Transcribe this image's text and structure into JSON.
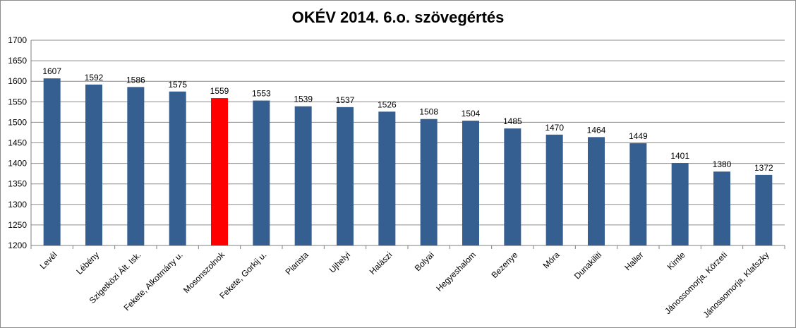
{
  "chart_data": {
    "type": "bar",
    "title": "OKÉV 2014. 6.o. szövegértés",
    "xlabel": "",
    "ylabel": "",
    "ylim": [
      1200,
      1700
    ],
    "yticks": [
      1200,
      1250,
      1300,
      1350,
      1400,
      1450,
      1500,
      1550,
      1600,
      1650,
      1700
    ],
    "grid": true,
    "legend": "none",
    "categories": [
      "Levél",
      "Lébény",
      "Szigetközi Ált. Isk.",
      "Fekete, Alkotmány u.",
      "Mosonszolnok",
      "Fekete, Gorkij u.",
      "Piarista",
      "Ujhelyi",
      "Halászi",
      "Bolyai",
      "Hegyeshalom",
      "Bezenye",
      "Móra",
      "Dunakiliti",
      "Haller",
      "Kimle",
      "Jánossomorja, Körzeti",
      "Jánossomorja, Klafszky"
    ],
    "values": [
      1607,
      1592,
      1586,
      1575,
      1559,
      1553,
      1539,
      1537,
      1526,
      1508,
      1504,
      1485,
      1470,
      1464,
      1449,
      1401,
      1380,
      1372
    ],
    "highlight_index": 4,
    "colors": {
      "bar": "#365f91",
      "highlight": "#ff0000",
      "grid": "#8c8c8c",
      "axis": "#7f7f7f"
    }
  }
}
